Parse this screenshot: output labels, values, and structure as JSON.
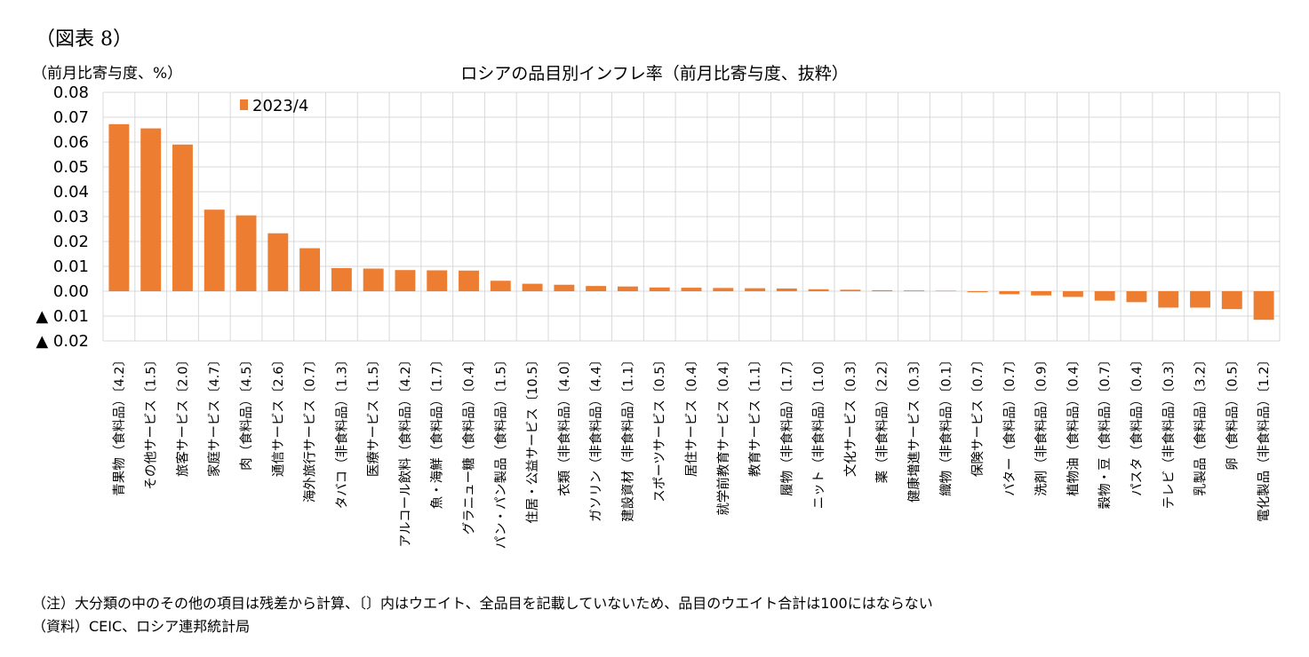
{
  "figure_label": "（図表 8）",
  "unit_label": "（前月比寄与度、%）",
  "note": "（注）大分類の中のその他の項目は残差から計算、〔〕内はウエイト、全品目を記載していないため、品目のウエイト合計は100にはならない",
  "source": "（資料）CEIC、ロシア連邦統計局",
  "chart_data": {
    "type": "bar",
    "title": "ロシアの品目別インフレ率（前月比寄与度、抜粋）",
    "ylim": [
      -0.02,
      0.08
    ],
    "yticks": [
      0.08,
      0.07,
      0.06,
      0.05,
      0.04,
      0.03,
      0.02,
      0.01,
      0.0,
      -0.01,
      -0.02
    ],
    "ytick_labels": [
      "0.08",
      "0.07",
      "0.06",
      "0.05",
      "0.04",
      "0.03",
      "0.02",
      "0.01",
      "0.00",
      "▲ 0.01",
      "▲ 0.02"
    ],
    "grid": true,
    "legend_position": "top-left",
    "bar_color": "#ED7D31",
    "categories": [
      "青果物（食料品）〔4.2〕",
      "その他サービス〔1.5〕",
      "旅客サービス〔2.0〕",
      "家庭サービス〔4.7〕",
      "肉（食料品）〔4.5〕",
      "通信サービス〔2.6〕",
      "海外旅行サービス〔0.7〕",
      "タバコ（非食料品）〔1.3〕",
      "医療サービス〔1.5〕",
      "アルコール飲料（食料品）〔4.2〕",
      "魚・海鮮（食料品）〔1.7〕",
      "グラニュー糖（食料品）〔0.4〕",
      "パン・パン製品（食料品）〔1.5〕",
      "住居・公益サービス〔10.5〕",
      "衣類（非食料品）〔4.0〕",
      "ガソリン（非食料品）〔4.4〕",
      "建設資材（非食料品）〔1.1〕",
      "スポーツサービス〔0.5〕",
      "居住サービス〔0.4〕",
      "就学前教育サービス〔0.4〕",
      "教育サービス〔1.1〕",
      "履物（非食料品）〔1.7〕",
      "ニット（非食料品）〔1.0〕",
      "文化サービス〔0.3〕",
      "薬（非食料品）〔2.2〕",
      "健康増進サービス〔0.3〕",
      "織物（非食料品）〔0.1〕",
      "保険サービス〔0.7〕",
      "バター（食料品）〔0.7〕",
      "洗剤（非食料品）〔0.9〕",
      "植物油（食料品）〔0.4〕",
      "穀物・豆（食料品）〔0.7〕",
      "パスタ（食料品）〔0.4〕",
      "テレビ（非食料品）〔0.3〕",
      "乳製品（食料品）〔3.2〕",
      "卵（食料品）〔0.5〕",
      "電化製品（非食料品）〔1.2〕"
    ],
    "series": [
      {
        "name": "2023/4",
        "values": [
          0.0672,
          0.0655,
          0.059,
          0.0328,
          0.0305,
          0.0233,
          0.0173,
          0.0093,
          0.0091,
          0.0085,
          0.0084,
          0.0083,
          0.0042,
          0.003,
          0.0026,
          0.0021,
          0.0019,
          0.0015,
          0.0014,
          0.0013,
          0.0012,
          0.0011,
          0.0008,
          0.0006,
          0.0004,
          0.0003,
          0.0002,
          -0.0004,
          -0.0012,
          -0.0017,
          -0.0023,
          -0.0038,
          -0.0044,
          -0.0066,
          -0.0066,
          -0.0072,
          -0.0115
        ]
      }
    ]
  }
}
